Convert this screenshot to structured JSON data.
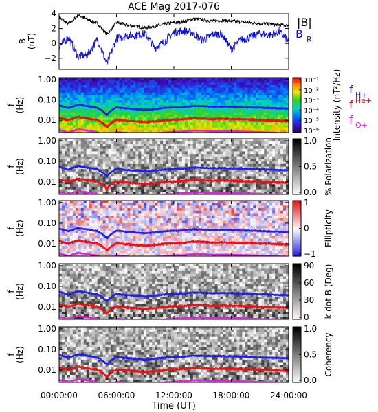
{
  "title": "ACE Mag 2017-076",
  "xaxis": {
    "label": "Time (UT)",
    "ticks": [
      "00:00:00",
      "06:00:00",
      "12:00:00",
      "18:00:00",
      "24:00:00"
    ],
    "hours": [
      0,
      6,
      12,
      18,
      24
    ]
  },
  "colors": {
    "B_total": "#000000",
    "B_R": "#1010e0",
    "f_H": "#1f1ff0",
    "f_He": "#f01010",
    "f_O": "#e020e0"
  },
  "line_legend": [
    {
      "label": "|B|",
      "color": "#000000"
    },
    {
      "label": "B",
      "sub": "R",
      "color": "#1010e0"
    }
  ],
  "cyclotron_legend": [
    {
      "label": "f",
      "sub": "H+",
      "color": "#1f1ff0"
    },
    {
      "label": "f",
      "sup": "He+",
      "color": "#c41010"
    },
    {
      "label": "f",
      "sub": "O+",
      "color": "#e020e0"
    }
  ],
  "chart_data": [
    {
      "type": "line",
      "ylabel": "B",
      "yunit": "(nT)",
      "ylim": [
        -3.5,
        4
      ],
      "yticks": [
        "4",
        "2",
        "0",
        "−2"
      ],
      "ytick_values": [
        4,
        2,
        0,
        -2
      ],
      "x_hours": [
        0,
        1,
        2,
        3,
        4,
        5,
        6,
        7,
        8,
        9,
        10,
        11,
        12,
        13,
        14,
        15,
        16,
        17,
        18,
        19,
        20,
        21,
        22,
        23,
        24
      ],
      "series": [
        {
          "name": "|B|",
          "values": [
            3.5,
            2.6,
            3.8,
            3.2,
            2.7,
            1.2,
            2.8,
            2.5,
            2.3,
            2.1,
            2.3,
            2.6,
            2.8,
            2.9,
            3.3,
            3.2,
            3.0,
            3.1,
            3.0,
            2.9,
            2.8,
            2.7,
            2.6,
            2.5,
            2.4
          ]
        },
        {
          "name": "B_R",
          "values": [
            -0.4,
            0.8,
            -1.8,
            -1.5,
            0.6,
            -2.8,
            0.7,
            1.0,
            1.1,
            1.3,
            -0.6,
            0.2,
            1.5,
            1.7,
            1.4,
            0.4,
            1.2,
            1.3,
            -0.8,
            0.5,
            0.8,
            1.4,
            1.1,
            1.6,
            0.3
          ]
        }
      ]
    },
    {
      "type": "heatmap",
      "ylabel": "f",
      "yunit": "(Hz)",
      "colorbar_label": "Intensity (nT²/Hz)",
      "colorbar_ticks": [
        "10⁻¹",
        "10⁻²",
        "10⁻³",
        "10⁻⁴",
        "10⁻⁵",
        "10⁻⁶"
      ],
      "colorscale": "rainbow",
      "zlim": [
        1e-06,
        0.1
      ]
    },
    {
      "type": "heatmap",
      "ylabel": "f",
      "yunit": "(Hz)",
      "colorbar_label": "% Polarization",
      "colorbar_ticks": [
        "1.0",
        "0.5",
        "0.0"
      ],
      "colorscale": "gray",
      "zlim": [
        0,
        1
      ]
    },
    {
      "type": "heatmap",
      "ylabel": "f",
      "yunit": "(Hz)",
      "colorbar_label": "Ellipticity",
      "colorbar_ticks": [
        "1",
        "0",
        "−1"
      ],
      "colorscale": "blue-white-red",
      "zlim": [
        -1,
        1
      ]
    },
    {
      "type": "heatmap",
      "ylabel": "f",
      "yunit": "(Hz)",
      "colorbar_label": "k dot B (Deg)",
      "colorbar_ticks": [
        "90",
        "60",
        "30",
        "0"
      ],
      "colorscale": "gray",
      "zlim": [
        0,
        90
      ]
    },
    {
      "type": "heatmap",
      "ylabel": "f",
      "yunit": "(Hz)",
      "colorbar_label": "Coherency",
      "colorbar_ticks": [
        "1.0",
        "0.5",
        "0.0"
      ],
      "colorscale": "gray",
      "zlim": [
        0,
        1
      ]
    }
  ],
  "spectrogram_common": {
    "yticks": [
      "1.00",
      "0.10",
      "0.01"
    ],
    "ytick_values": [
      1.0,
      0.1,
      0.01
    ],
    "ylim": [
      0.0025,
      1.25
    ],
    "yscale": "log",
    "cyclotron_x_hours": [
      0,
      1,
      2,
      3,
      4,
      5,
      6,
      7,
      8,
      9,
      10,
      11,
      12,
      13,
      14,
      15,
      16,
      17,
      18,
      19,
      20,
      21,
      22,
      23,
      24
    ],
    "f_H_values": [
      0.053,
      0.04,
      0.058,
      0.049,
      0.041,
      0.018,
      0.043,
      0.038,
      0.035,
      0.032,
      0.035,
      0.04,
      0.043,
      0.044,
      0.05,
      0.049,
      0.046,
      0.047,
      0.046,
      0.044,
      0.043,
      0.041,
      0.04,
      0.038,
      0.037
    ],
    "f_He_values": [
      0.0133,
      0.0099,
      0.0145,
      0.0122,
      0.0103,
      0.0046,
      0.0107,
      0.0095,
      0.0088,
      0.008,
      0.0088,
      0.0099,
      0.0107,
      0.0111,
      0.0126,
      0.0122,
      0.0114,
      0.0118,
      0.0114,
      0.0111,
      0.0107,
      0.0103,
      0.0099,
      0.0095,
      0.0092
    ],
    "f_O_values": [
      0.0033,
      0.0025,
      0.0036,
      0.0031,
      0.0026,
      0.0012,
      0.0027,
      0.0024,
      0.0022,
      0.002,
      0.0022,
      0.0025,
      0.0027,
      0.0028,
      0.0031,
      0.0031,
      0.0029,
      0.0029,
      0.0029,
      0.0028,
      0.0027,
      0.0026,
      0.0025,
      0.0024,
      0.0023
    ]
  }
}
